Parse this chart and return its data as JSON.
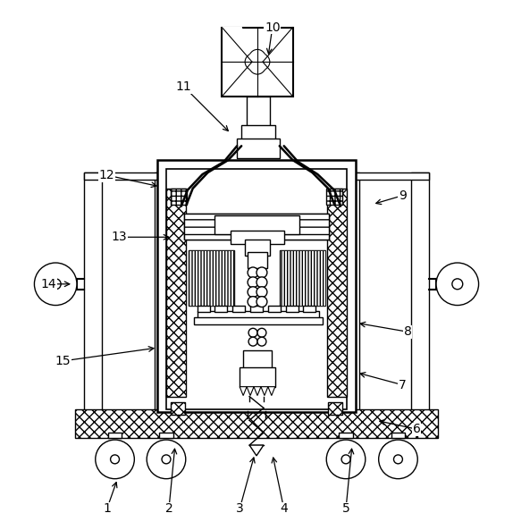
{
  "background_color": "#ffffff",
  "line_color": "#000000",
  "figsize": [
    5.74,
    5.93
  ],
  "dpi": 100,
  "labels_data": [
    [
      1,
      118,
      572,
      130,
      538
    ],
    [
      2,
      188,
      572,
      195,
      500
    ],
    [
      3,
      268,
      572,
      285,
      510
    ],
    [
      4,
      318,
      572,
      305,
      510
    ],
    [
      5,
      388,
      572,
      395,
      500
    ],
    [
      6,
      468,
      482,
      422,
      472
    ],
    [
      7,
      452,
      432,
      400,
      418
    ],
    [
      8,
      458,
      372,
      400,
      362
    ],
    [
      9,
      452,
      218,
      418,
      228
    ],
    [
      10,
      305,
      28,
      300,
      62
    ],
    [
      11,
      205,
      95,
      258,
      148
    ],
    [
      12,
      118,
      195,
      178,
      208
    ],
    [
      13,
      132,
      265,
      192,
      265
    ],
    [
      14,
      52,
      318,
      80,
      318
    ],
    [
      15,
      68,
      405,
      175,
      390
    ]
  ]
}
